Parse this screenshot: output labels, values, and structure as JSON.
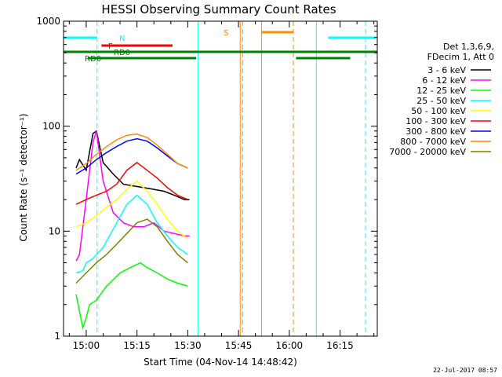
{
  "chart_data": {
    "type": "line",
    "title": "HESSI Observing Summary Count Rates",
    "xlabel": "Start Time (04-Nov-14 14:48:42)",
    "ylabel": "Count Rate (s⁻¹ detector⁻¹)",
    "yscale": "log",
    "ylim": [
      1,
      1000
    ],
    "xlim_minutes": [
      -6.7,
      86.0
    ],
    "x_ticks": [
      {
        "minute": 0,
        "label": "15:00"
      },
      {
        "minute": 15,
        "label": "15:15"
      },
      {
        "minute": 30,
        "label": "15:30"
      },
      {
        "minute": 45,
        "label": "15:45"
      },
      {
        "minute": 60,
        "label": "16:00"
      },
      {
        "minute": 75,
        "label": "16:15"
      }
    ],
    "y_ticks": [
      {
        "value": 1,
        "label": "1"
      },
      {
        "value": 10,
        "label": "10"
      },
      {
        "value": 100,
        "label": "100"
      },
      {
        "value": 1000,
        "label": "1000"
      }
    ],
    "legend_header": [
      "Det 1,3,6,9,",
      "FDecim 1, Att 0"
    ],
    "legend_position": "right",
    "series": [
      {
        "name": "3 - 6 keV",
        "color": "#000000",
        "x": [
          -3,
          -2,
          0,
          2,
          3,
          5,
          8,
          11,
          14,
          17,
          20,
          23,
          26,
          29,
          30.5
        ],
        "y": [
          40,
          48,
          38,
          85,
          90,
          45,
          35,
          28,
          27,
          26,
          25,
          24,
          22,
          20,
          20
        ]
      },
      {
        "name": "6 - 12 keV",
        "color": "#ff00ff",
        "x": [
          -3,
          -2,
          0,
          2,
          3,
          5,
          8,
          11,
          14,
          17,
          20,
          23,
          26,
          29,
          30.5
        ],
        "y": [
          5.2,
          6,
          20,
          70,
          90,
          30,
          15,
          12,
          11,
          11,
          12,
          10,
          9.5,
          9,
          9
        ]
      },
      {
        "name": "12 - 25 keV",
        "color": "#00ff00",
        "x": [
          -3,
          -1,
          0,
          1,
          3,
          6,
          10,
          13,
          16,
          18,
          21,
          24,
          27,
          30
        ],
        "y": [
          2.5,
          1.2,
          1.5,
          2,
          2.2,
          3,
          4,
          4.5,
          5,
          4.5,
          4,
          3.5,
          3.2,
          3
        ]
      },
      {
        "name": "25 - 50 keV",
        "color": "#00ffff",
        "x": [
          -3,
          -1,
          0,
          2,
          5,
          9,
          12,
          15,
          18,
          21,
          24,
          27,
          30
        ],
        "y": [
          4,
          4.2,
          5,
          5.5,
          7,
          12,
          18,
          22,
          18,
          12,
          9,
          7,
          6
        ]
      },
      {
        "name": "50 - 100 keV",
        "color": "#ffff00",
        "x": [
          -3,
          0,
          3,
          6,
          9,
          12,
          15,
          18,
          21,
          24,
          27,
          30
        ],
        "y": [
          11,
          12,
          14,
          17,
          20,
          25,
          30,
          24,
          18,
          13,
          10,
          8.5
        ]
      },
      {
        "name": "100 - 300 keV",
        "color": "#ff0000",
        "x": [
          -3,
          0,
          3,
          6,
          9,
          12,
          15,
          18,
          21,
          24,
          27,
          30
        ],
        "y": [
          18,
          20,
          22,
          24,
          28,
          38,
          45,
          38,
          32,
          26,
          22,
          20
        ]
      },
      {
        "name": "300 - 800 keV",
        "color": "#0000ff",
        "x": [
          -3,
          0,
          3,
          6,
          9,
          12,
          15,
          18,
          21,
          24,
          27,
          30
        ],
        "y": [
          35,
          40,
          48,
          56,
          64,
          72,
          76,
          72,
          62,
          52,
          44,
          40
        ]
      },
      {
        "name": "800 - 7000 keV",
        "color": "#ff8c00",
        "x": [
          -3,
          0,
          3,
          6,
          9,
          12,
          15,
          18,
          21,
          24,
          27,
          30
        ],
        "y": [
          38,
          44,
          54,
          64,
          74,
          82,
          84,
          78,
          66,
          54,
          44,
          40
        ]
      },
      {
        "name": "7000 - 20000 keV",
        "color": "#808000",
        "x": [
          -3,
          0,
          3,
          6,
          9,
          12,
          15,
          18,
          21,
          24,
          27,
          30
        ],
        "y": [
          3.2,
          4,
          5,
          6,
          7.5,
          9.5,
          12,
          13,
          11,
          8,
          6,
          5
        ]
      }
    ],
    "flag_bars": [
      {
        "label": "N",
        "color": "#00ffff",
        "segments": [
          [
            -6.7,
            3.2
          ],
          [
            71.5,
            85.5
          ]
        ]
      },
      {
        "label": "F",
        "color": "#ff0000",
        "segments": [
          [
            4.5,
            25.5
          ]
        ]
      },
      {
        "label": "RD0",
        "color": "#008000",
        "segments": [
          [
            -6.7,
            86.0
          ]
        ]
      },
      {
        "label": "RD6",
        "color": "#008000",
        "segments": [
          [
            0.5,
            32.5
          ],
          [
            62.0,
            78.0
          ]
        ]
      },
      {
        "label": "S",
        "color": "#ff8c00",
        "segments": [
          [
            51.8,
            61.2
          ]
        ]
      }
    ],
    "vertical_markers": [
      {
        "minute": 3.2,
        "color": "#00ffff",
        "style": "dashed"
      },
      {
        "minute": 33.0,
        "color": "#00ffff",
        "style": "solid"
      },
      {
        "minute": 45.5,
        "color": "#ff8c00",
        "style": "solid"
      },
      {
        "minute": 46.2,
        "color": "#ff8c00",
        "style": "dashed"
      },
      {
        "minute": 51.8,
        "color": "#ff8c00",
        "style": "solid"
      },
      {
        "minute": 61.2,
        "color": "#ff8c00",
        "style": "dashed"
      },
      {
        "minute": 68.0,
        "color": "#00ffff",
        "style": "solid"
      },
      {
        "minute": 82.5,
        "color": "#00ffff",
        "style": "dashed"
      }
    ],
    "grid": false
  },
  "footer": {
    "timestamp": "22-Jul-2017 08:57"
  }
}
